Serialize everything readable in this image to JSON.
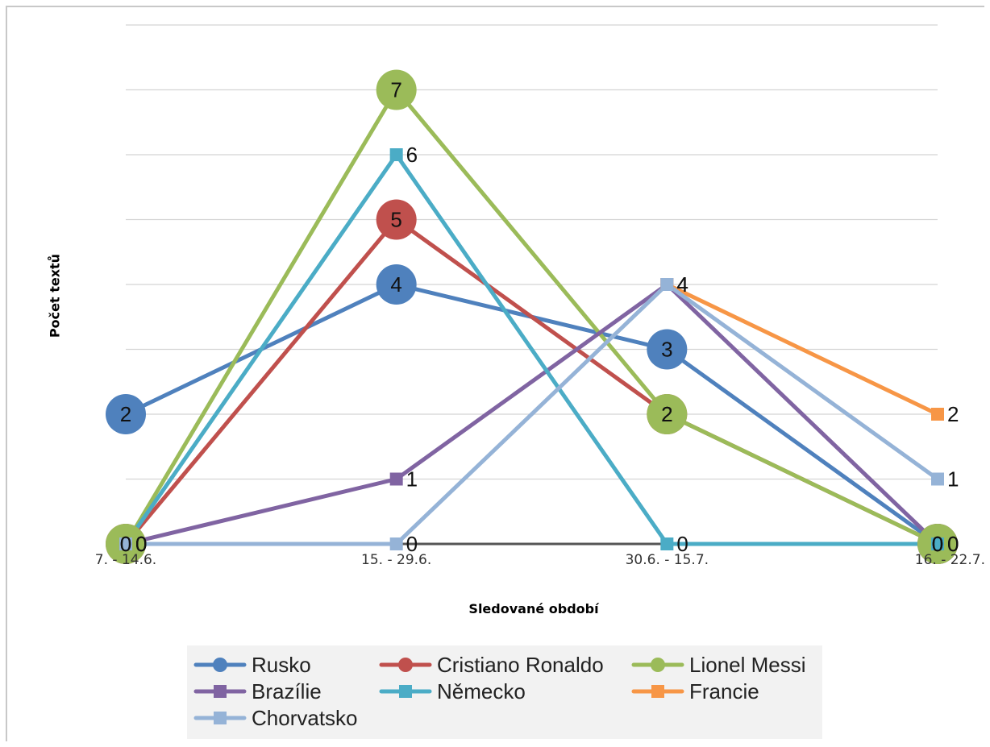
{
  "chart_data": {
    "type": "line",
    "title": "",
    "xlabel": "Sledované období",
    "ylabel": "Počet textů",
    "categories": [
      "7. - 14.6.",
      "15. - 29.6.",
      "30.6. - 15.7.",
      "16. - 22.7."
    ],
    "ylim": [
      0,
      8
    ],
    "grid": true,
    "legend_position": "bottom",
    "series": [
      {
        "name": "Rusko",
        "values": [
          2,
          4,
          3,
          0
        ],
        "color": "#4f81bd",
        "marker": "circle-large"
      },
      {
        "name": "Cristiano Ronaldo",
        "values": [
          0,
          5,
          2,
          0
        ],
        "color": "#c0504d",
        "marker": "circle-large"
      },
      {
        "name": "Lionel Messi",
        "values": [
          0,
          7,
          2,
          0
        ],
        "color": "#9bbb59",
        "marker": "circle-large"
      },
      {
        "name": "Brazílie",
        "values": [
          0,
          1,
          4,
          0
        ],
        "color": "#8064a2",
        "marker": "square"
      },
      {
        "name": "Německo",
        "values": [
          0,
          6,
          0,
          0
        ],
        "color": "#4bacc6",
        "marker": "square"
      },
      {
        "name": "Francie",
        "values": [
          null,
          null,
          4,
          2
        ],
        "color": "#f79646",
        "marker": "square"
      },
      {
        "name": "Chorvatsko",
        "values": [
          0,
          0,
          4,
          1
        ],
        "color": "#95b3d7",
        "marker": "square"
      }
    ]
  }
}
